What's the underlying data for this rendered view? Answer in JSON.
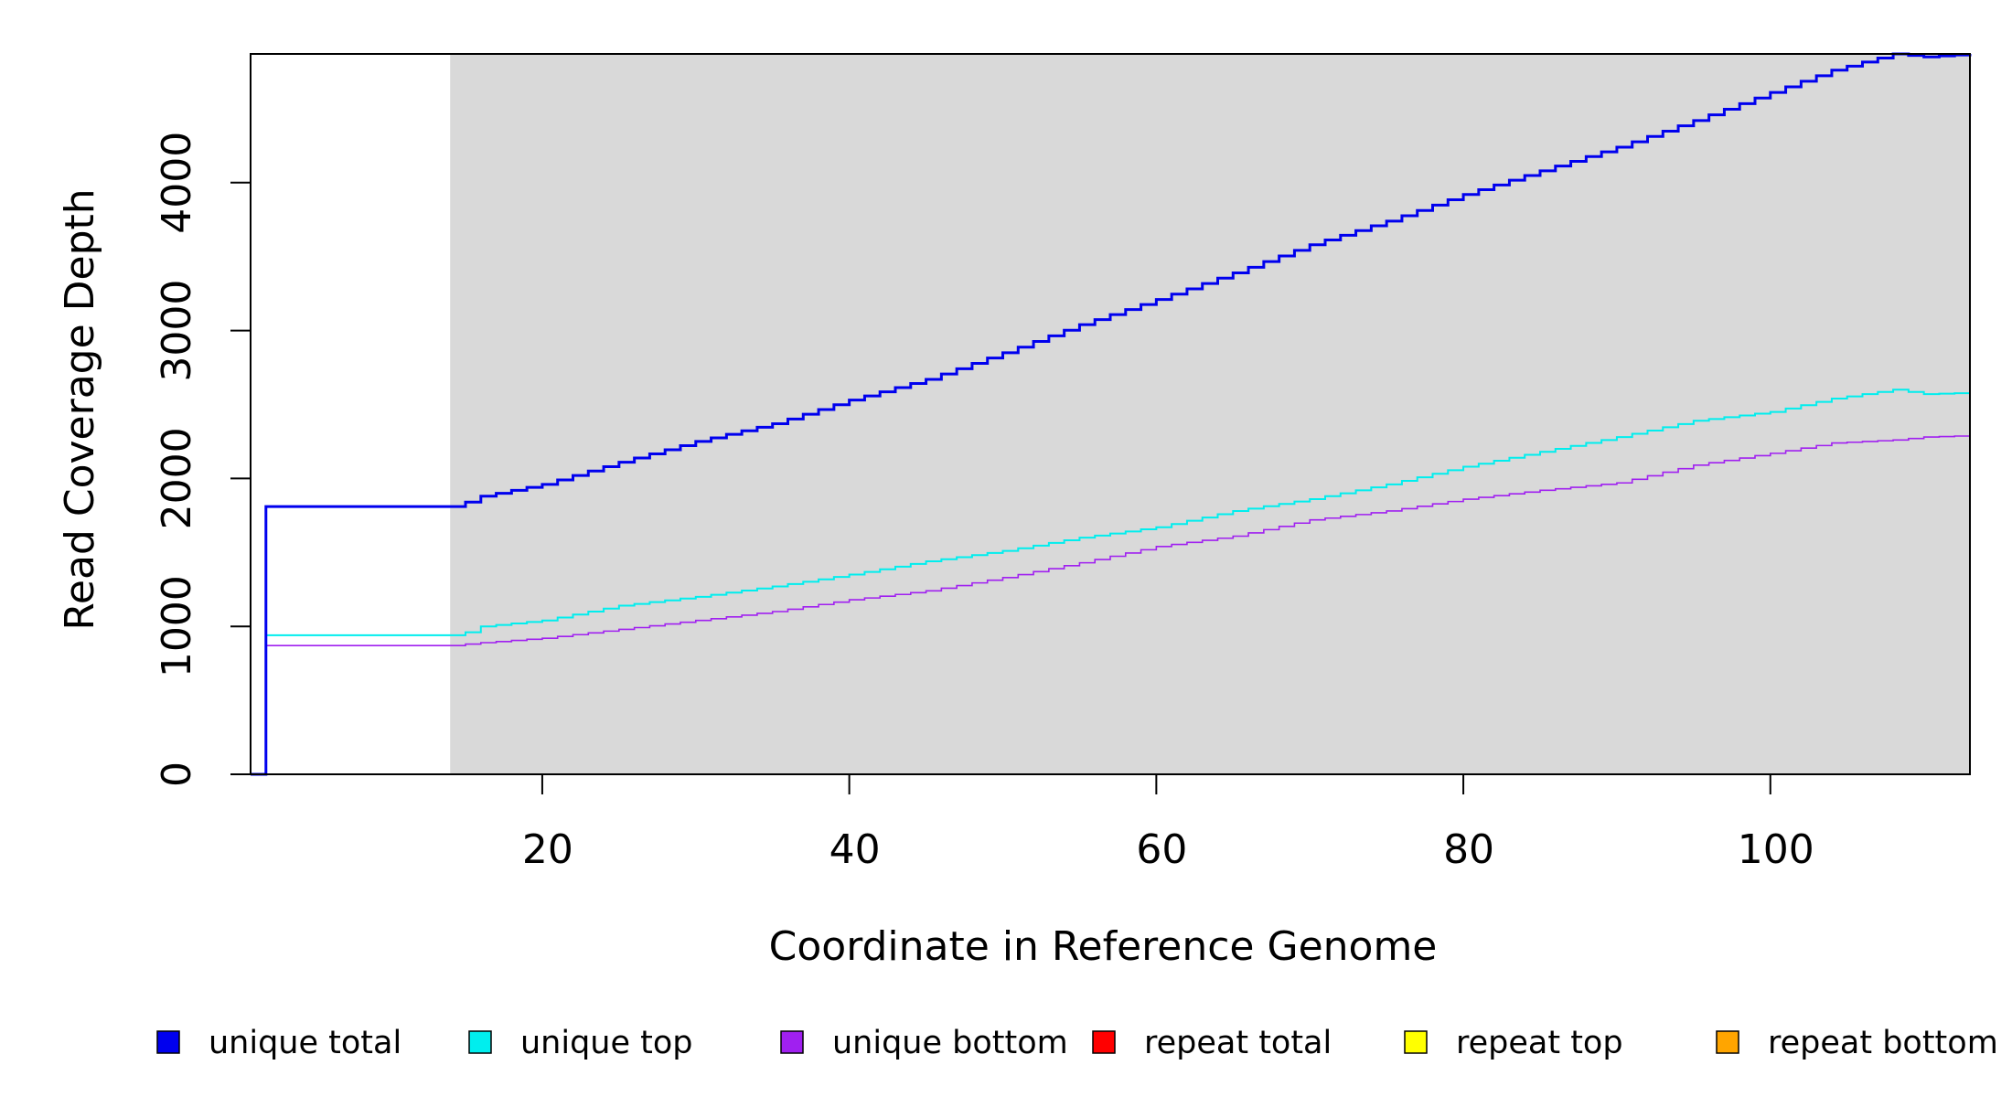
{
  "chart_data": {
    "type": "line",
    "title": "",
    "xlabel": "Coordinate in Reference Genome",
    "ylabel": "Read Coverage Depth",
    "xlim": [
      1,
      113
    ],
    "ylim": [
      0,
      4870
    ],
    "xticks": [
      "20",
      "40",
      "60",
      "80",
      "100"
    ],
    "yticks": [
      "0",
      "1000",
      "2000",
      "3000",
      "4000"
    ],
    "grid": false,
    "shaded_region": {
      "x_start": 14,
      "x_end": 113,
      "color": "#d9d9d9"
    },
    "legend_position": "bottom",
    "series": [
      {
        "name": "unique total",
        "color": "#0000ee",
        "x": [
          1,
          14,
          15,
          16,
          20,
          25,
          30,
          35,
          40,
          45,
          50,
          55,
          60,
          65,
          70,
          75,
          80,
          85,
          90,
          95,
          100,
          104,
          108,
          110,
          113
        ],
        "y": [
          0,
          1810,
          1840,
          1880,
          1960,
          2110,
          2250,
          2370,
          2530,
          2670,
          2850,
          3040,
          3210,
          3390,
          3580,
          3740,
          3920,
          4080,
          4240,
          4420,
          4610,
          4760,
          4870,
          4850,
          4870
        ]
      },
      {
        "name": "unique top",
        "color": "#00eeee",
        "x": [
          1,
          14,
          15,
          16,
          20,
          25,
          30,
          35,
          40,
          45,
          50,
          55,
          60,
          65,
          70,
          75,
          80,
          85,
          90,
          95,
          100,
          104,
          108,
          110,
          113
        ],
        "y": [
          0,
          940,
          960,
          1000,
          1040,
          1140,
          1200,
          1270,
          1350,
          1440,
          1510,
          1600,
          1670,
          1780,
          1860,
          1960,
          2080,
          2180,
          2280,
          2390,
          2450,
          2540,
          2600,
          2570,
          2580
        ]
      },
      {
        "name": "unique bottom",
        "color": "#a020f0",
        "x": [
          1,
          14,
          15,
          16,
          20,
          25,
          30,
          35,
          40,
          45,
          50,
          55,
          60,
          65,
          70,
          75,
          80,
          85,
          90,
          95,
          100,
          104,
          108,
          110,
          113
        ],
        "y": [
          0,
          870,
          880,
          890,
          920,
          980,
          1040,
          1100,
          1180,
          1240,
          1330,
          1430,
          1540,
          1610,
          1720,
          1780,
          1860,
          1920,
          1970,
          2090,
          2170,
          2240,
          2260,
          2280,
          2290
        ]
      },
      {
        "name": "repeat total",
        "color": "#ff0000",
        "x": [
          1,
          113
        ],
        "y": [
          0,
          0
        ]
      },
      {
        "name": "repeat top",
        "color": "#ffff00",
        "x": [
          1,
          113
        ],
        "y": [
          0,
          0
        ]
      },
      {
        "name": "repeat bottom",
        "color": "#ffa500",
        "x": [
          1,
          113
        ],
        "y": [
          0,
          0
        ]
      }
    ]
  }
}
